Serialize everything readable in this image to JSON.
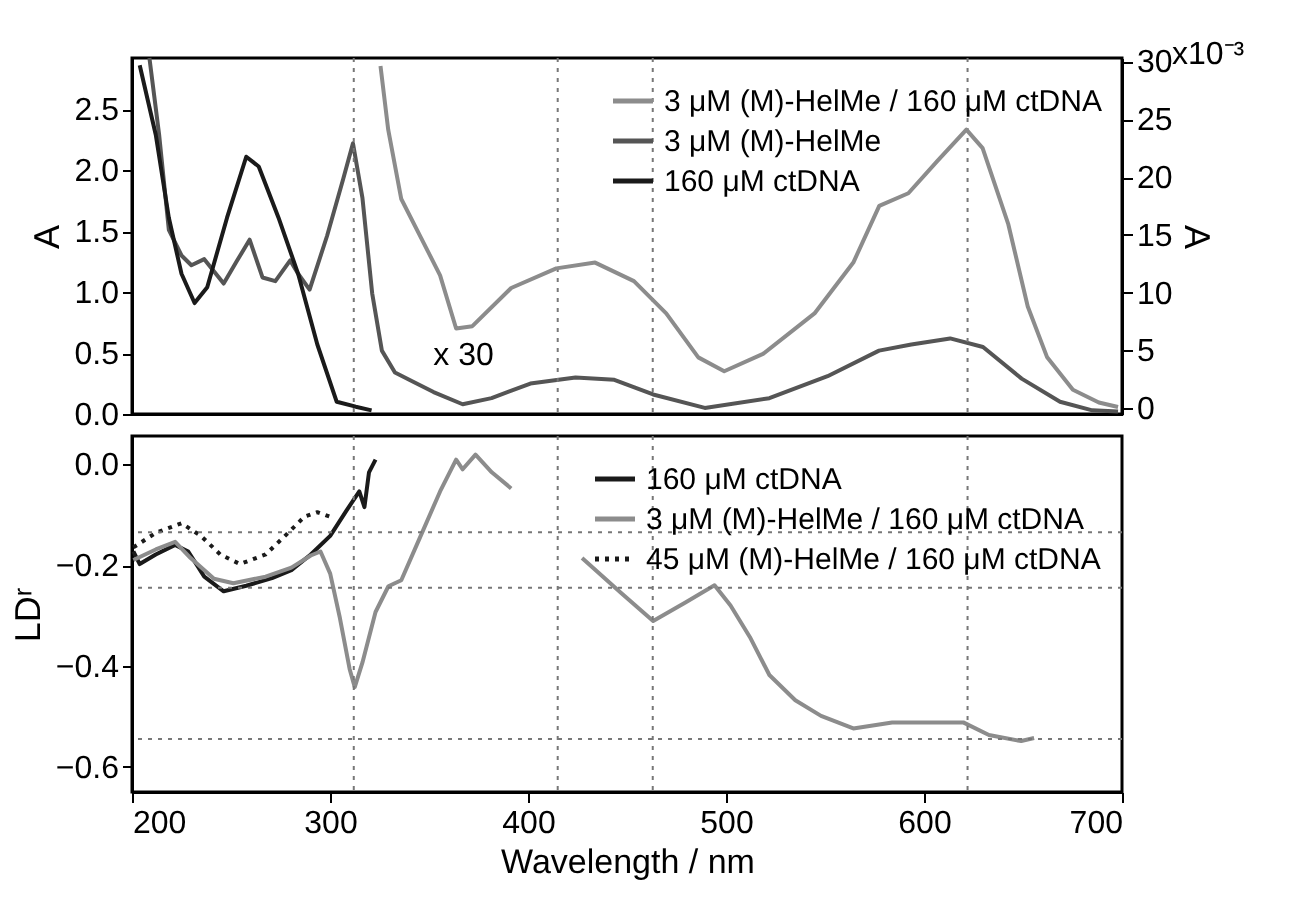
{
  "chart_data": [
    {
      "type": "line",
      "ylabel": "A",
      "y2label": "A",
      "xlim": [
        200,
        700
      ],
      "xticks": [
        200,
        300,
        400,
        500,
        600,
        700
      ],
      "tick_labels": "y",
      "ylim": [
        0,
        2.92
      ],
      "yticks": [
        {
          "value": 0,
          "label": "0.0"
        },
        0.5,
        {
          "value": 1,
          "label": "1.0"
        },
        1.5,
        {
          "value": 2,
          "label": "2.0"
        },
        2.5
      ],
      "y2lim": [
        -0.5,
        30.3
      ],
      "y2ticks": [
        0,
        5,
        10,
        15,
        20,
        25,
        30
      ],
      "legend": "top right",
      "annotations": [
        {
          "text": "x 30",
          "x": 338,
          "y": 0.32
        },
        "x10⁻³"
      ],
      "ref_lines": [
        {
          "axis": "x",
          "value": 312
        },
        {
          "axis": "x",
          "value": 415
        },
        {
          "axis": "x",
          "value": 463
        },
        {
          "axis": "x",
          "value": 622
        }
      ],
      "series": [
        {
          "name": "3 μM (M)-HelMe / 160 μM ctDNA",
          "color": "#8c8c8c",
          "axis": "y2",
          "x": [
            325.5,
            329.4,
            336,
            345.8,
            355.6,
            363.7,
            371.9,
            391.5,
            414.3,
            433.9,
            453.5,
            469.8,
            486,
            499.1,
            518.7,
            544.7,
            564.3,
            577.4,
            592.1,
            606.8,
            621.4,
            629.6,
            642.6,
            652.4,
            662.2,
            675.2,
            688.3,
            698
          ],
          "values": [
            29.6,
            24.1,
            18.1,
            14.8,
            11.5,
            6.9,
            7.1,
            10.4,
            12.1,
            12.6,
            11.0,
            8.2,
            4.4,
            3.2,
            4.7,
            8.2,
            12.6,
            17.5,
            18.6,
            21.4,
            24.1,
            22.5,
            15.9,
            8.8,
            4.4,
            1.6,
            0.5,
            0.1
          ]
        },
        {
          "name": "3 μM (M)-HelMe",
          "color": "#555555",
          "x": [
            208.8,
            213.7,
            218.6,
            225,
            230,
            236.5,
            246.3,
            252.8,
            259.4,
            265.9,
            272.4,
            279.9,
            283.9,
            289.7,
            298.5,
            306.7,
            311.6,
            316.4,
            321.3,
            326.2,
            332.8,
            342.5,
            352.3,
            367,
            381.6,
            401.2,
            424,
            443.6,
            463.2,
            489.3,
            521.9,
            551.3,
            577.3,
            593.6,
            613.2,
            629.8,
            649.3,
            668.7,
            685,
            698
          ],
          "values": [
            2.92,
            2.29,
            1.51,
            1.3,
            1.22,
            1.27,
            1.07,
            1.25,
            1.43,
            1.12,
            1.09,
            1.26,
            1.15,
            1.02,
            1.46,
            1.93,
            2.22,
            1.77,
            0.99,
            0.52,
            0.34,
            0.26,
            0.18,
            0.08,
            0.13,
            0.25,
            0.3,
            0.28,
            0.16,
            0.05,
            0.13,
            0.31,
            0.52,
            0.57,
            0.62,
            0.55,
            0.29,
            0.1,
            0.03,
            0.02
          ]
        },
        {
          "name": "160 μM ctDNA",
          "color": "#1a1a1a",
          "x": [
            203.9,
            212,
            218.6,
            225,
            231.6,
            238,
            248,
            257.7,
            264,
            274,
            283.9,
            293.6,
            303.4,
            313,
            321
          ],
          "values": [
            2.86,
            2.29,
            1.61,
            1.15,
            0.91,
            1.04,
            1.61,
            2.11,
            2.03,
            1.61,
            1.15,
            0.57,
            0.1,
            0.06,
            0.03
          ]
        }
      ]
    },
    {
      "type": "line",
      "xlabel": "Wavelength / nm",
      "ylabel": "LDʳ",
      "xlim": [
        200,
        700
      ],
      "xticks": [
        200,
        300,
        400,
        500,
        600,
        700
      ],
      "ylim": [
        -0.65,
        0.056
      ],
      "yticks": [
        -0.6,
        -0.4,
        -0.2,
        {
          "value": 0,
          "label": "0.0"
        }
      ],
      "legend": "top right",
      "ref_lines": [
        {
          "axis": "x",
          "value": 312
        },
        {
          "axis": "x",
          "value": 415
        },
        {
          "axis": "x",
          "value": 463
        },
        {
          "axis": "x",
          "value": 622
        },
        {
          "axis": "y",
          "value": -0.135
        },
        {
          "axis": "y",
          "value": -0.245
        },
        {
          "axis": "y",
          "value": -0.545
        }
      ],
      "series": [
        {
          "name": "160 μM ctDNA",
          "color": "#1a1a1a",
          "line_style": "solid",
          "x": [
            200.7,
            203.9,
            212,
            221.8,
            228.4,
            236.5,
            246.3,
            257.7,
            270.7,
            280.5,
            290.3,
            300.1,
            308.3,
            314.8,
            317.4,
            319.7,
            323
          ],
          "values": [
            -0.173,
            -0.198,
            -0.179,
            -0.16,
            -0.173,
            -0.223,
            -0.252,
            -0.241,
            -0.226,
            -0.21,
            -0.179,
            -0.142,
            -0.092,
            -0.054,
            -0.085,
            -0.016,
            0.009
          ]
        },
        {
          "name": "3 μM (M)-HelMe / 160 μM ctDNA",
          "color": "#8c8c8c",
          "line_style": "solid",
          "x": [
            200.7,
            212,
            221.8,
            229.6,
            241.4,
            251.2,
            267.5,
            280.5,
            290.3,
            295.2,
            300.1,
            305,
            309.9,
            312.5,
            316.4,
            323,
            329.5,
            336,
            345.8,
            355.6,
            363.7,
            367,
            373.5,
            381.7,
            391.5,
            410,
            427.3,
            446.9,
            463.2,
            479.5,
            494.2,
            502.3,
            512.1,
            521.9,
            535,
            548,
            564.3,
            583.9,
            603.4,
            619.8,
            632.8,
            649.1,
            655.6
          ],
          "values": [
            -0.19,
            -0.169,
            -0.154,
            -0.186,
            -0.227,
            -0.236,
            -0.223,
            -0.205,
            -0.181,
            -0.173,
            -0.217,
            -0.305,
            -0.406,
            -0.442,
            -0.393,
            -0.293,
            -0.242,
            -0.23,
            -0.142,
            -0.054,
            0.009,
            -0.01,
            0.019,
            -0.016,
            -0.048,
            null,
            -0.186,
            -0.255,
            -0.311,
            -0.274,
            -0.24,
            -0.28,
            -0.343,
            -0.418,
            -0.468,
            -0.499,
            -0.524,
            -0.512,
            -0.512,
            -0.512,
            -0.537,
            -0.549,
            -0.543
          ]
        },
        {
          "name": "45 μM (M)-HelMe / 160 μM ctDNA",
          "color": "#1a1a1a",
          "line_style": "dotted",
          "x": [
            200.7,
            212,
            225,
            234.8,
            244.6,
            254.5,
            267.5,
            277.3,
            287.1,
            293.6,
            300.1
          ],
          "values": [
            -0.165,
            -0.136,
            -0.117,
            -0.142,
            -0.179,
            -0.198,
            -0.179,
            -0.142,
            -0.104,
            -0.095,
            -0.104
          ]
        }
      ]
    }
  ]
}
